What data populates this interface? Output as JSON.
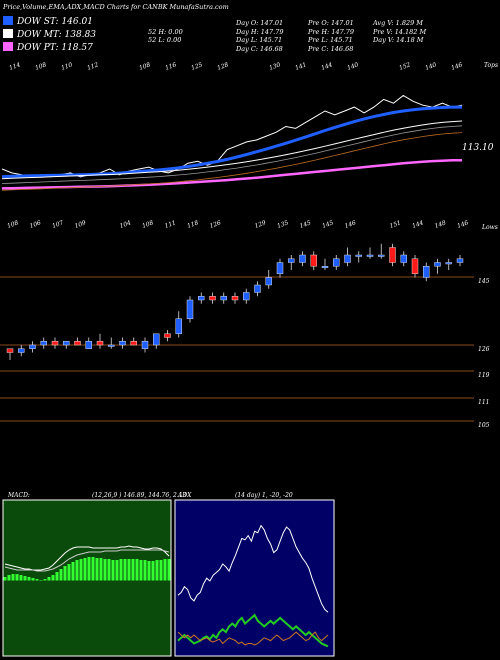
{
  "header": {
    "title": "Price,Volume,EMA,ADX,MACD Charts for CANBK MunafaSutra.com",
    "col1": [
      "",
      "52  H: 0.00",
      "52  L: 0.00"
    ],
    "col2": [
      "Day O: 147.01",
      "Day H: 147.79",
      "Day L: 145.71",
      "Day C: 146.68"
    ],
    "col3": [
      "Pre  O: 147.01",
      "Pre  H: 147.79",
      "Pre  L: 145.71",
      "Pre  C: 146.68"
    ],
    "col4": [
      "Avg V: 1.829 M",
      "Pre  V: 14.182  M",
      "Day V: 14.18  M"
    ]
  },
  "dow": [
    {
      "label": "DOW ST: 146.01",
      "color": "#1f5fff"
    },
    {
      "label": "DOW MT: 138.83",
      "color": "#ffffff"
    },
    {
      "label": "DOW PT: 118.57",
      "color": "#ff66ff"
    }
  ],
  "colors": {
    "up": "#1f5fff",
    "down": "#ff1a1a",
    "grid": "#8a4a1a",
    "macd_bg": "#0a4a0a",
    "adx_bg": "#000066"
  },
  "chart_data": [
    {
      "type": "line",
      "name": "EMA panel",
      "top_labels": [
        "114",
        "108",
        "110",
        "112",
        "",
        "108",
        "116",
        "125",
        "128",
        "",
        "130",
        "141",
        "144",
        "140",
        "",
        "152",
        "140",
        "146"
      ],
      "side_label": "Tops",
      "last_value_label": "113.10",
      "series": [
        {
          "name": "price",
          "color": "#ffffff",
          "values": [
            114,
            112,
            111,
            110,
            111,
            110,
            111,
            112,
            110,
            111,
            112,
            114,
            111,
            113,
            114,
            115,
            113,
            112,
            114,
            117,
            118,
            116,
            118,
            124,
            126,
            128,
            129,
            131,
            133,
            136,
            135,
            138,
            141,
            144,
            142,
            144,
            146,
            143,
            146,
            150,
            148,
            152,
            149,
            147,
            146,
            148,
            146,
            147
          ]
        },
        {
          "name": "EMA short",
          "color": "#1f5fff",
          "values": [
            110,
            110.3,
            110.4,
            110.5,
            110.6,
            110.7,
            110.8,
            110.9,
            111,
            111.2,
            111.4,
            111.6,
            111.9,
            112.3,
            112.7,
            113.1,
            113.5,
            114,
            114.6,
            115.3,
            116.1,
            117,
            117.9,
            119,
            120.2,
            121.5,
            122.9,
            124.3,
            125.8,
            127.3,
            128.9,
            130.5,
            132.2,
            133.9,
            135.5,
            137,
            138.5,
            139.9,
            141.1,
            142.2,
            143.2,
            144,
            144.6,
            145.1,
            145.5,
            145.8,
            146,
            146.01
          ]
        },
        {
          "name": "EMA medium",
          "color": "#ffffff",
          "values": [
            109,
            109.2,
            109.4,
            109.6,
            109.8,
            110,
            110.2,
            110.4,
            110.6,
            110.8,
            111,
            111.2,
            111.4,
            111.7,
            112,
            112.3,
            112.6,
            113,
            113.4,
            113.9,
            114.4,
            115,
            115.6,
            116.3,
            117,
            117.8,
            118.6,
            119.5,
            120.4,
            121.4,
            122.4,
            123.5,
            124.6,
            125.8,
            127,
            128.2,
            129.4,
            130.6,
            131.8,
            133,
            134.1,
            135.1,
            136,
            136.8,
            137.5,
            138.1,
            138.5,
            138.83
          ]
        },
        {
          "name": "EMA long",
          "color": "#ff66ff",
          "values": [
            104,
            104.1,
            104.2,
            104.3,
            104.4,
            104.5,
            104.6,
            104.7,
            104.8,
            104.9,
            105,
            105.1,
            105.3,
            105.5,
            105.7,
            105.9,
            106.1,
            106.4,
            106.7,
            107,
            107.3,
            107.6,
            107.9,
            108.3,
            108.7,
            109.1,
            109.5,
            110,
            110.5,
            111,
            111.5,
            112,
            112.5,
            113,
            113.5,
            114,
            114.5,
            115,
            115.5,
            116,
            116.5,
            117,
            117.4,
            117.8,
            118.1,
            118.3,
            118.5,
            118.57
          ]
        }
      ]
    },
    {
      "type": "candlestick",
      "name": "Price panel",
      "top_labels": [
        "108",
        "106",
        "107",
        "109",
        "",
        "104",
        "108",
        "111",
        "118",
        "126",
        "",
        "129",
        "135",
        "145",
        "145",
        "146",
        "",
        "151",
        "144",
        "148",
        "146"
      ],
      "side_label": "Lows",
      "y_labels": [
        "145",
        "126",
        "119",
        "111",
        "105"
      ],
      "candles": [
        {
          "o": 123,
          "c": 122,
          "h": 123,
          "l": 120
        },
        {
          "o": 122,
          "c": 123,
          "h": 124,
          "l": 121
        },
        {
          "o": 123,
          "c": 124,
          "h": 125,
          "l": 122
        },
        {
          "o": 124,
          "c": 125,
          "h": 126,
          "l": 123
        },
        {
          "o": 125,
          "c": 124,
          "h": 126,
          "l": 123
        },
        {
          "o": 124,
          "c": 125,
          "h": 125,
          "l": 123
        },
        {
          "o": 125,
          "c": 124,
          "h": 126,
          "l": 124
        },
        {
          "o": 123,
          "c": 125,
          "h": 126,
          "l": 123
        },
        {
          "o": 125,
          "c": 124,
          "h": 127,
          "l": 123
        },
        {
          "o": 124,
          "c": 124,
          "h": 126,
          "l": 123
        },
        {
          "o": 124,
          "c": 125,
          "h": 126,
          "l": 123
        },
        {
          "o": 125,
          "c": 124,
          "h": 126,
          "l": 124
        },
        {
          "o": 123,
          "c": 125,
          "h": 126,
          "l": 122
        },
        {
          "o": 124,
          "c": 127,
          "h": 127,
          "l": 123
        },
        {
          "o": 127,
          "c": 126,
          "h": 128,
          "l": 125
        },
        {
          "o": 127,
          "c": 131,
          "h": 133,
          "l": 126
        },
        {
          "o": 131,
          "c": 136,
          "h": 137,
          "l": 130
        },
        {
          "o": 136,
          "c": 137,
          "h": 138,
          "l": 135
        },
        {
          "o": 137,
          "c": 136,
          "h": 138,
          "l": 135
        },
        {
          "o": 136,
          "c": 137,
          "h": 138,
          "l": 135
        },
        {
          "o": 137,
          "c": 136,
          "h": 138,
          "l": 135
        },
        {
          "o": 136,
          "c": 138,
          "h": 139,
          "l": 135
        },
        {
          "o": 138,
          "c": 140,
          "h": 141,
          "l": 137
        },
        {
          "o": 140,
          "c": 142,
          "h": 144,
          "l": 139
        },
        {
          "o": 143,
          "c": 146,
          "h": 147,
          "l": 142
        },
        {
          "o": 146,
          "c": 147,
          "h": 148,
          "l": 144
        },
        {
          "o": 146,
          "c": 148,
          "h": 149,
          "l": 145
        },
        {
          "o": 148,
          "c": 145,
          "h": 149,
          "l": 144
        },
        {
          "o": 145,
          "c": 145,
          "h": 147,
          "l": 144
        },
        {
          "o": 145,
          "c": 147,
          "h": 148,
          "l": 144
        },
        {
          "o": 146,
          "c": 148,
          "h": 150,
          "l": 145
        },
        {
          "o": 148,
          "c": 148,
          "h": 149,
          "l": 146
        },
        {
          "o": 148,
          "c": 148,
          "h": 150,
          "l": 147
        },
        {
          "o": 148,
          "c": 148,
          "h": 151,
          "l": 147
        },
        {
          "o": 150,
          "c": 146,
          "h": 151,
          "l": 145
        },
        {
          "o": 146,
          "c": 148,
          "h": 149,
          "l": 145
        },
        {
          "o": 147,
          "c": 143,
          "h": 148,
          "l": 142
        },
        {
          "o": 142,
          "c": 145,
          "h": 146,
          "l": 141
        },
        {
          "o": 145,
          "c": 146,
          "h": 147,
          "l": 143
        },
        {
          "o": 146,
          "c": 146,
          "h": 147,
          "l": 144
        },
        {
          "o": 146,
          "c": 147,
          "h": 148,
          "l": 145
        }
      ]
    },
    {
      "type": "bar",
      "name": "MACD",
      "label": "MACD:",
      "params": "(12,26,9 ) 146.89, 144.76, 2.13",
      "values": [
        0.3,
        0.5,
        0.6,
        0.6,
        0.5,
        0.4,
        0.3,
        0.2,
        0.1,
        0.0,
        0.1,
        0.3,
        0.5,
        0.8,
        1.1,
        1.4,
        1.6,
        1.8,
        2.0,
        2.1,
        2.2,
        2.3,
        2.3,
        2.2,
        2.2,
        2.1,
        2.1,
        2.0,
        2.0,
        2.1,
        2.1,
        2.1,
        2.1,
        2.1,
        2.0,
        2.0,
        1.9,
        1.9,
        2.0,
        2.0,
        2.1,
        2.1
      ],
      "macd_line": [
        1.6,
        1.5,
        1.4,
        1.3,
        1.2,
        1.1,
        1.1,
        1.0,
        1.0,
        1.0,
        1.1,
        1.2,
        1.5,
        1.9,
        2.3,
        2.7,
        3.0,
        3.2,
        3.3,
        3.3,
        3.3,
        3.3,
        3.2,
        3.2,
        3.2,
        3.2,
        3.2,
        3.2,
        3.2,
        3.3,
        3.3,
        3.4,
        3.3,
        3.3,
        3.2,
        3.1,
        3.1,
        3.2,
        3.2,
        3.1,
        2.8,
        2.4
      ],
      "signal_line": [
        1.3,
        1.2,
        1.1,
        1.0,
        1.0,
        1.0,
        1.0,
        1.0,
        0.9,
        0.9,
        0.9,
        1.0,
        1.1,
        1.3,
        1.5,
        1.8,
        2.1,
        2.3,
        2.5,
        2.6,
        2.7,
        2.8,
        2.8,
        2.8,
        2.8,
        2.9,
        2.9,
        2.9,
        2.9,
        3.0,
        3.0,
        3.0,
        3.0,
        3.0,
        3.0,
        3.0,
        3.0,
        3.0,
        3.0,
        3.0,
        2.9,
        2.8
      ]
    },
    {
      "type": "line",
      "name": "ADX",
      "label": "ADX",
      "params": "(14  day) 1, -20, -20",
      "series": [
        {
          "name": "adx",
          "color": "#ffffff",
          "values": [
            40,
            42,
            46,
            44,
            38,
            36,
            40,
            42,
            48,
            52,
            50,
            54,
            56,
            58,
            62,
            60,
            57,
            63,
            68,
            74,
            80,
            79,
            82,
            78,
            85,
            84,
            89,
            86,
            80,
            76,
            70,
            72,
            78,
            84,
            88,
            86,
            80,
            74,
            70,
            66,
            63,
            59,
            52,
            46,
            40,
            34,
            30,
            28
          ]
        },
        {
          "name": "di+",
          "color": "#22cc22",
          "values": [
            8,
            10,
            12,
            10,
            8,
            6,
            7,
            8,
            10,
            11,
            9,
            12,
            10,
            14,
            16,
            14,
            18,
            20,
            18,
            22,
            24,
            20,
            22,
            24,
            26,
            22,
            20,
            18,
            20,
            22,
            20,
            22,
            24,
            22,
            20,
            18,
            16,
            18,
            16,
            14,
            12,
            14,
            12,
            10,
            8,
            6,
            5,
            4
          ]
        },
        {
          "name": "di-",
          "color": "#cc7722",
          "values": [
            14,
            12,
            10,
            12,
            10,
            12,
            10,
            8,
            9,
            10,
            8,
            7,
            8,
            9,
            6,
            8,
            10,
            9,
            8,
            6,
            7,
            5,
            6,
            6,
            5,
            6,
            8,
            10,
            9,
            8,
            10,
            12,
            10,
            8,
            9,
            10,
            12,
            14,
            12,
            10,
            8,
            9,
            12,
            14,
            10,
            8,
            10,
            12
          ]
        }
      ]
    }
  ]
}
